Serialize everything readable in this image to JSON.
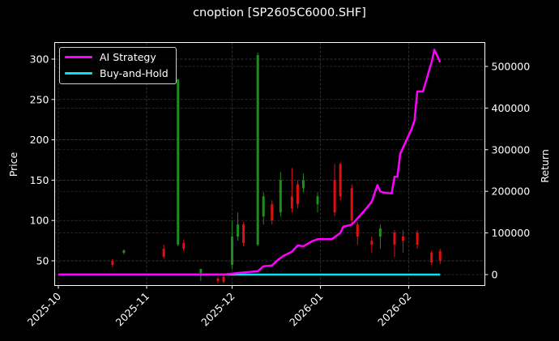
{
  "title": "cnoption [SP2605C6000.SHF]",
  "legend": {
    "items": [
      {
        "label": "AI Strategy",
        "color": "#ff00ff"
      },
      {
        "label": "Buy-and-Hold",
        "color": "#00e5ee"
      }
    ]
  },
  "axes": {
    "left_label": "Price",
    "right_label": "Return",
    "left_ticks": [
      "50",
      "100",
      "150",
      "200",
      "250",
      "300"
    ],
    "right_ticks": [
      "0",
      "100000",
      "200000",
      "300000",
      "400000",
      "500000"
    ],
    "x_ticks": [
      "2025-10",
      "2025-11",
      "2025-12",
      "2026-01",
      "2026-02"
    ]
  },
  "colors": {
    "up": "#1f8c1f",
    "down": "#e01010",
    "grid": "#444444",
    "frame": "#ffffff",
    "strategy": "#ff00ff",
    "buyhold": "#00e5ee"
  },
  "chart_data": {
    "type": "line",
    "title": "cnoption [SP2605C6000.SHF]",
    "xlabel": "",
    "ylabel": "Price",
    "ylabel_right": "Return",
    "ylim": [
      22,
      322
    ],
    "ylim_right": [
      -25000,
      560000
    ],
    "x_range": [
      "2025-09-30",
      "2026-02-28"
    ],
    "grid": true,
    "legend_position": "upper left",
    "x_ticks": [
      "2025-10",
      "2025-11",
      "2025-12",
      "2026-01",
      "2026-02"
    ],
    "series": [
      {
        "name": "AI Strategy",
        "axis": "right",
        "x": [
          "2025-10-01",
          "2025-11-28",
          "2025-12-05",
          "2025-12-10",
          "2025-12-12",
          "2025-12-15",
          "2025-12-17",
          "2025-12-19",
          "2025-12-22",
          "2025-12-24",
          "2025-12-26",
          "2025-12-29",
          "2025-12-31",
          "2026-01-05",
          "2026-01-08",
          "2026-01-09",
          "2026-01-12",
          "2026-01-14",
          "2026-01-16",
          "2026-01-19",
          "2026-01-21",
          "2026-01-22",
          "2026-01-23",
          "2026-01-26",
          "2026-01-27",
          "2026-01-28",
          "2026-01-29",
          "2026-02-02",
          "2026-02-03",
          "2026-02-04",
          "2026-02-05",
          "2026-02-06",
          "2026-02-09",
          "2026-02-10",
          "2026-02-11",
          "2026-02-12"
        ],
        "values": [
          0,
          0,
          5000,
          8000,
          20000,
          22000,
          35000,
          45000,
          55000,
          70000,
          68000,
          80000,
          85000,
          85000,
          100000,
          115000,
          120000,
          135000,
          150000,
          175000,
          215000,
          200000,
          197000,
          195000,
          235000,
          235000,
          290000,
          350000,
          370000,
          440000,
          440000,
          440000,
          510000,
          540000,
          525000,
          510000
        ]
      },
      {
        "name": "Buy-and-Hold",
        "axis": "right",
        "x": [
          "2025-10-01",
          "2026-02-12"
        ],
        "values": [
          0,
          0
        ]
      },
      {
        "name": "Price OHLC",
        "type": "candlestick",
        "axis": "left",
        "note": "Daily candlesticks, green=up, red=down; notable spikes to ~275 (mid-Nov) and ~305 (mid-Dec)",
        "x": [
          "2025-10-20",
          "2025-10-24",
          "2025-11-07",
          "2025-11-12",
          "2025-11-14",
          "2025-11-20",
          "2025-11-26",
          "2025-11-28",
          "2025-12-01",
          "2025-12-03",
          "2025-12-05",
          "2025-12-10",
          "2025-12-12",
          "2025-12-15",
          "2025-12-18",
          "2025-12-22",
          "2025-12-24",
          "2025-12-26",
          "2025-12-31",
          "2026-01-06",
          "2026-01-08",
          "2026-01-12",
          "2026-01-14",
          "2026-01-19",
          "2026-01-22",
          "2026-01-27",
          "2026-01-30",
          "2026-02-04",
          "2026-02-09",
          "2026-02-12"
        ],
        "open": [
          50,
          60,
          65,
          70,
          72,
          35,
          28,
          30,
          45,
          80,
          95,
          70,
          105,
          120,
          110,
          130,
          145,
          140,
          120,
          150,
          170,
          140,
          95,
          75,
          80,
          85,
          80,
          85,
          60,
          62
        ],
        "close": [
          45,
          63,
          55,
          275,
          65,
          40,
          25,
          24,
          80,
          95,
          72,
          305,
          130,
          100,
          150,
          115,
          120,
          150,
          130,
          110,
          130,
          100,
          80,
          70,
          90,
          70,
          75,
          70,
          48,
          50
        ],
        "high": [
          52,
          64,
          70,
          275,
          76,
          40,
          30,
          32,
          100,
          110,
          98,
          308,
          135,
          125,
          160,
          165,
          150,
          158,
          135,
          170,
          172,
          145,
          98,
          80,
          95,
          88,
          88,
          88,
          62,
          65
        ],
        "low": [
          42,
          58,
          53,
          68,
          62,
          25,
          22,
          22,
          40,
          75,
          68,
          68,
          95,
          95,
          105,
          110,
          115,
          135,
          110,
          105,
          125,
          95,
          70,
          60,
          65,
          55,
          60,
          65,
          45,
          46
        ]
      }
    ]
  }
}
